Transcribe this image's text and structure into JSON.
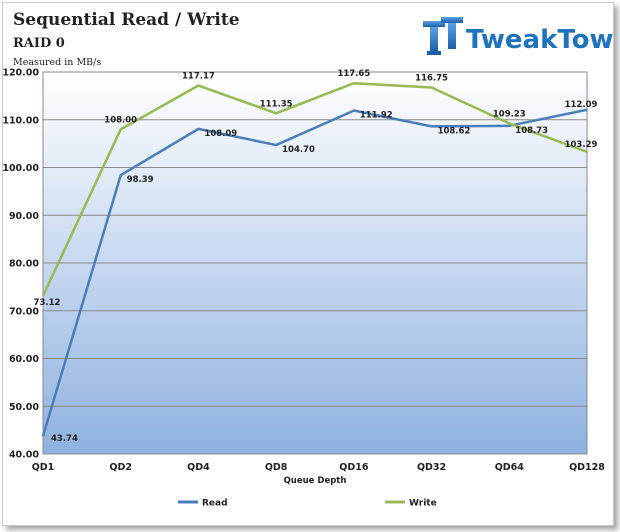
{
  "brand": {
    "name": "TweakTown"
  },
  "chart_data": {
    "type": "line",
    "title": "Sequential Read / Write",
    "subtitle": "RAID 0",
    "unit_label": "Measured in MB/s",
    "xlabel": "Queue Depth",
    "ylabel": "",
    "categories": [
      "QD1",
      "QD2",
      "QD4",
      "QD8",
      "QD16",
      "QD32",
      "QD64",
      "QD128"
    ],
    "ylim": [
      40,
      120
    ],
    "yticks": [
      40,
      50,
      60,
      70,
      80,
      90,
      100,
      110,
      120
    ],
    "ytick_labels": [
      "40.00",
      "50.00",
      "60.00",
      "70.00",
      "80.00",
      "90.00",
      "100.00",
      "110.00",
      "120.00"
    ],
    "grid": true,
    "legend": "bottom",
    "series": [
      {
        "name": "Read",
        "color": "#4a7ebb",
        "values": [
          43.74,
          98.39,
          108.09,
          104.7,
          111.92,
          108.62,
          108.73,
          112.09
        ],
        "labels": [
          "43.74",
          "98.39",
          "108.09",
          "104.70",
          "111.92",
          "108.62",
          "108.73",
          "112.09"
        ]
      },
      {
        "name": "Write",
        "color": "#98b954",
        "values": [
          73.12,
          108.0,
          117.17,
          111.35,
          117.65,
          116.75,
          109.23,
          103.29
        ],
        "labels": [
          "73.12",
          "108.00",
          "117.17",
          "111.35",
          "117.65",
          "116.75",
          "109.23",
          "103.29"
        ]
      }
    ]
  }
}
